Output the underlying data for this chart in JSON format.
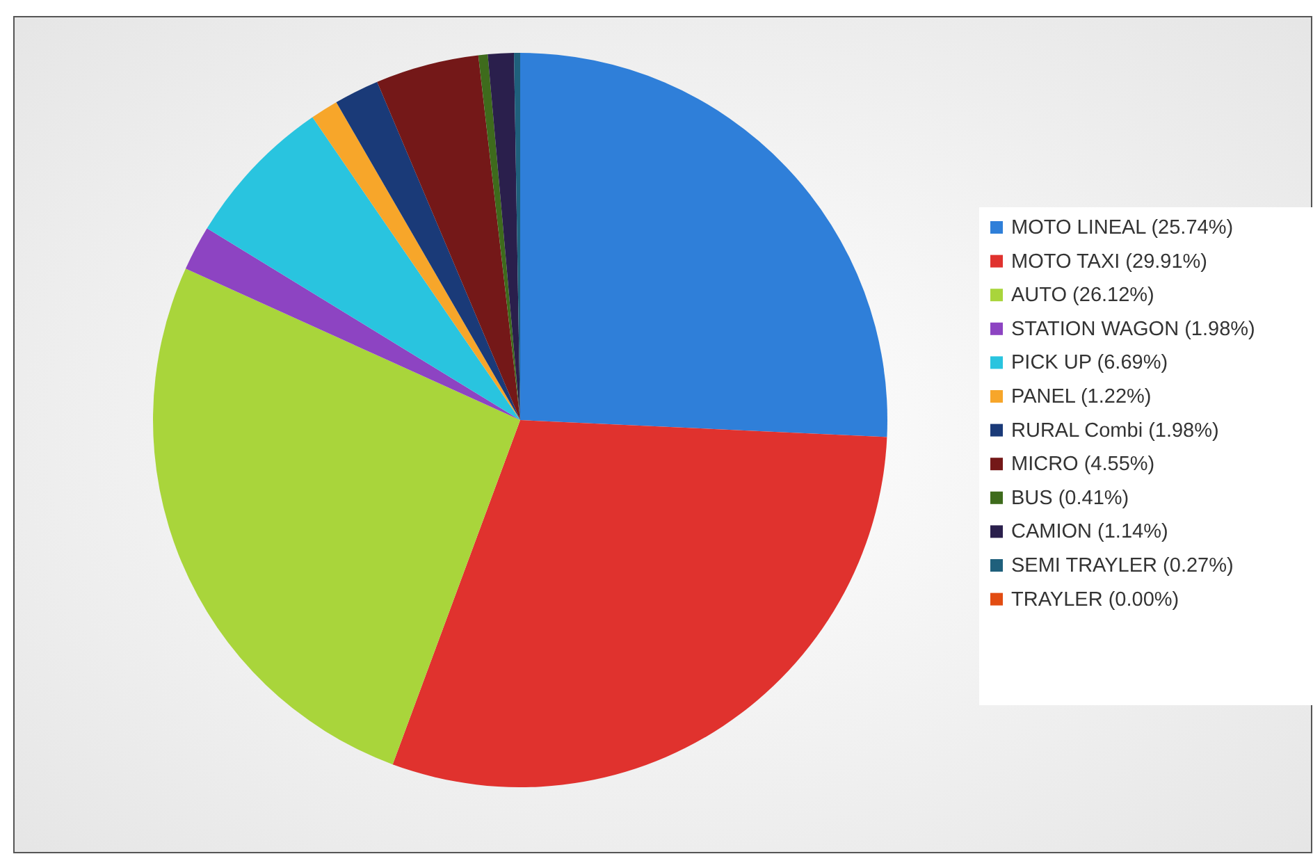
{
  "chart_data": {
    "type": "pie",
    "categories": [
      "MOTO LINEAL (25.74%)",
      "MOTO TAXI (29.91%)",
      "AUTO (26.12%)",
      "STATION WAGON (1.98%)",
      "PICK UP (6.69%)",
      "PANEL (1.22%)",
      "RURAL Combi (1.98%)",
      "MICRO (4.55%)",
      "BUS (0.41%)",
      "CAMION (1.14%)",
      "SEMI TRAYLER (0.27%)",
      "TRAYLER (0.00%)"
    ],
    "values": [
      25.74,
      29.91,
      26.12,
      1.98,
      6.69,
      1.22,
      1.98,
      4.55,
      0.41,
      1.14,
      0.27,
      0
    ],
    "colors": [
      "#2f7fd9",
      "#e0322e",
      "#a9d53b",
      "#8d44c2",
      "#29c4df",
      "#f7a62a",
      "#1a3a78",
      "#741818",
      "#3e6b1c",
      "#2a1f4c",
      "#1f607c",
      "#e24c12"
    ],
    "legend": "right"
  }
}
